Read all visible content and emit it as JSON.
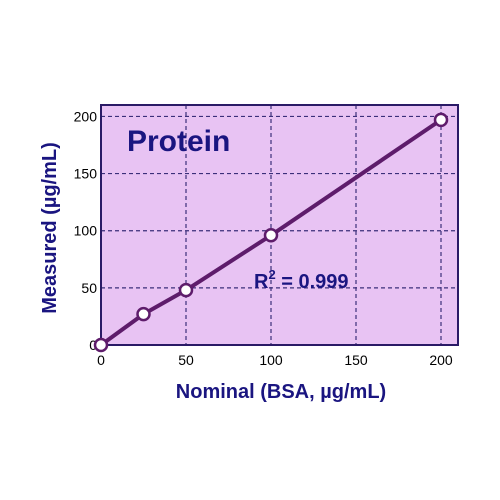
{
  "chart_data": {
    "type": "line",
    "title": "Protein",
    "xlabel": "Nominal (BSA, µg/mL)",
    "ylabel": "Measured (µg/mL)",
    "xlim": [
      0,
      210
    ],
    "ylim": [
      0,
      210
    ],
    "x_ticks": [
      0,
      50,
      100,
      150,
      200
    ],
    "y_ticks": [
      0,
      50,
      100,
      150,
      200
    ],
    "grid": true,
    "series": [
      {
        "x": [
          0,
          25,
          50,
          100,
          200
        ],
        "y": [
          0,
          27,
          48,
          96,
          197
        ]
      }
    ],
    "annotation": {
      "r_label": "R",
      "r_exponent": "2",
      "r_value": " = 0.999"
    },
    "colors": {
      "plot_background": "#e8c3f3",
      "grid": "#3b2f7a",
      "border": "#2a1a66",
      "line": "#5e1c6b",
      "marker_fill": "#ffffff",
      "text": "#1a1580"
    }
  }
}
